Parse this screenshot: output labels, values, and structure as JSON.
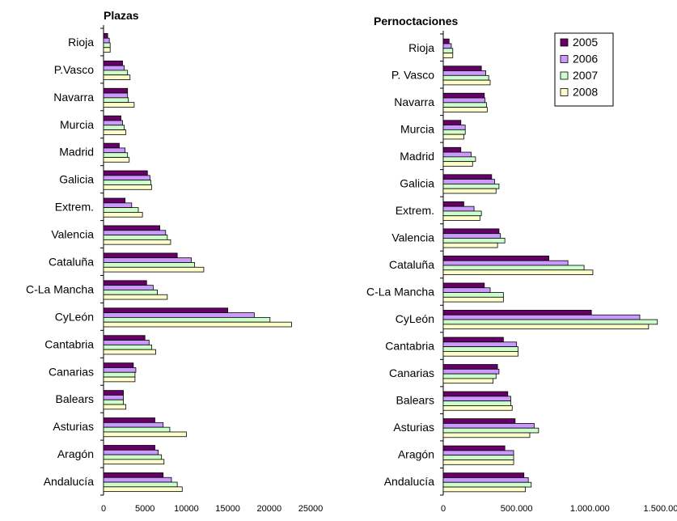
{
  "colors": {
    "2005": "#660066",
    "2006": "#cc99ff",
    "2007": "#ccffcc",
    "2008": "#ffffcc",
    "stroke": "#000000"
  },
  "legend": {
    "placement": "top-right",
    "entries": [
      "2005",
      "2006",
      "2007",
      "2008"
    ]
  },
  "chart_data": [
    {
      "type": "bar",
      "orientation": "horizontal",
      "title": "Plazas",
      "categories": [
        "Rioja",
        "P.Vasco",
        "Navarra",
        "Murcia",
        "Madrid",
        "Galicia",
        "Extrem.",
        "Valencia",
        "Cataluña",
        "C-La Mancha",
        "CyLeón",
        "Cantabria",
        "Canarias",
        "Balears",
        "Asturias",
        "Aragón",
        "Andalucía"
      ],
      "xlim": [
        0,
        25000
      ],
      "xticks": [
        0,
        5000,
        10000,
        15000,
        20000,
        25000
      ],
      "xtick_labels": [
        "0",
        "5000",
        "10000",
        "15000",
        "20000",
        "25000"
      ],
      "series": [
        {
          "name": "2005",
          "values": [
            500,
            2300,
            2900,
            2100,
            1900,
            5300,
            2600,
            6800,
            8900,
            5200,
            15000,
            5000,
            3600,
            2400,
            6200,
            6200,
            7200
          ]
        },
        {
          "name": "2006",
          "values": [
            700,
            2500,
            2900,
            2300,
            2600,
            5600,
            3400,
            7500,
            10600,
            6000,
            18200,
            5500,
            3900,
            2400,
            7200,
            6600,
            8200
          ]
        },
        {
          "name": "2007",
          "values": [
            800,
            2900,
            3000,
            2500,
            2900,
            5700,
            4200,
            7700,
            11000,
            6500,
            20100,
            5800,
            3800,
            2400,
            8000,
            7000,
            8900
          ]
        },
        {
          "name": "2008",
          "values": [
            800,
            3200,
            3700,
            2700,
            3100,
            5800,
            4700,
            8100,
            12100,
            7700,
            22700,
            6300,
            3800,
            2700,
            10000,
            7300,
            9500
          ]
        }
      ]
    },
    {
      "type": "bar",
      "orientation": "horizontal",
      "title": "Pernoctaciones",
      "categories": [
        "Rioja",
        "P. Vasco",
        "Navarra",
        "Murcia",
        "Madrid",
        "Galicia",
        "Extrem.",
        "Valencia",
        "Cataluña",
        "C-La Mancha",
        "CyLeón",
        "Cantabria",
        "Canarias",
        "Balears",
        "Asturias",
        "Aragón",
        "Andalucía"
      ],
      "xlim": [
        0,
        1500000
      ],
      "xticks": [
        0,
        500000,
        1000000,
        1500000
      ],
      "xtick_labels": [
        "0",
        "500.000",
        "1.000.000",
        "1.500.000"
      ],
      "series": [
        {
          "name": "2005",
          "values": [
            40000,
            260000,
            280000,
            120000,
            120000,
            330000,
            140000,
            380000,
            720000,
            280000,
            1010000,
            410000,
            370000,
            440000,
            490000,
            420000,
            550000
          ]
        },
        {
          "name": "2006",
          "values": [
            55000,
            290000,
            285000,
            150000,
            190000,
            350000,
            210000,
            390000,
            850000,
            320000,
            1340000,
            500000,
            380000,
            460000,
            620000,
            480000,
            580000
          ]
        },
        {
          "name": "2007",
          "values": [
            65000,
            310000,
            295000,
            150000,
            220000,
            380000,
            260000,
            420000,
            960000,
            410000,
            1460000,
            510000,
            360000,
            460000,
            650000,
            480000,
            600000
          ]
        },
        {
          "name": "2008",
          "values": [
            65000,
            320000,
            300000,
            140000,
            200000,
            360000,
            250000,
            370000,
            1020000,
            410000,
            1400000,
            510000,
            340000,
            470000,
            590000,
            480000,
            560000
          ]
        }
      ]
    }
  ]
}
